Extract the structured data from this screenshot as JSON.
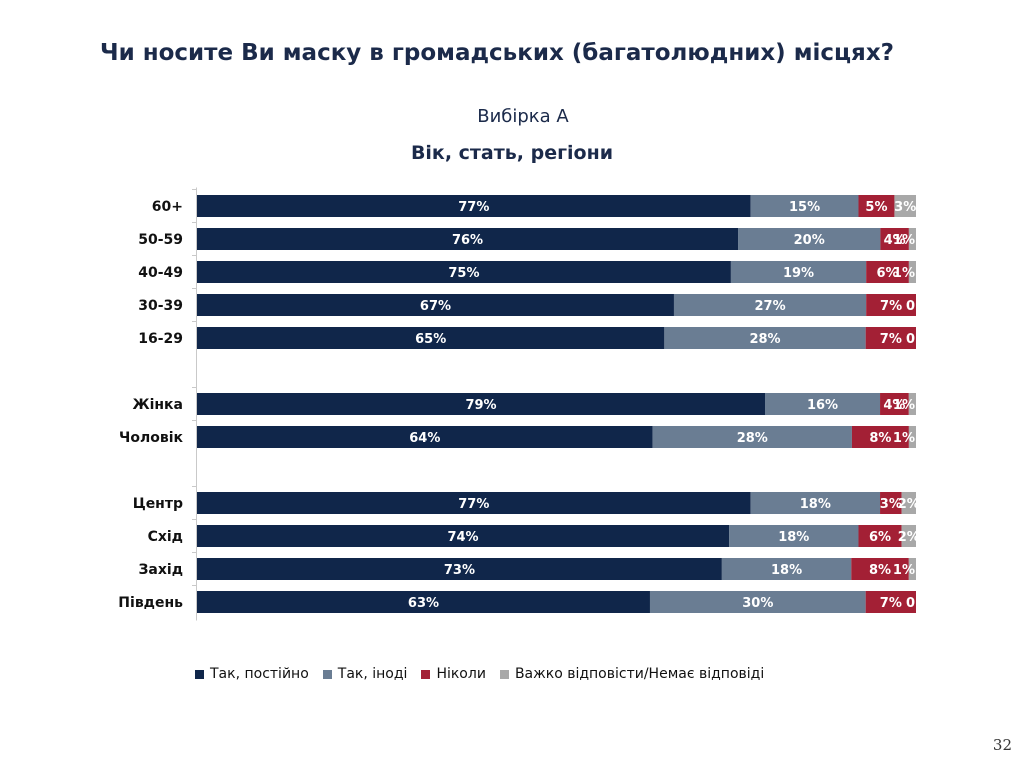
{
  "title": "Чи носите Ви маску в громадських (багатолюдних) місцях?",
  "subtitle": "Вибірка А",
  "subtitle2": "Вік, стать, регіони",
  "page_number": "32",
  "colors": {
    "always": "#10264a",
    "sometimes": "#6a7d93",
    "never": "#a32035",
    "hard_to_say": "#a8a8a8"
  },
  "chart_data": {
    "type": "bar",
    "orientation": "horizontal",
    "stacked": true,
    "xlim": [
      0,
      100
    ],
    "groups": [
      [
        "60+",
        "50-59",
        "40-49",
        "30-39",
        "16-29"
      ],
      [
        "Жінка",
        "Чоловік"
      ],
      [
        "Центр",
        "Схід",
        "Захід",
        "Південь"
      ]
    ],
    "categories": [
      "60+",
      "50-59",
      "40-49",
      "30-39",
      "16-29",
      "Жінка",
      "Чоловік",
      "Центр",
      "Схід",
      "Захід",
      "Південь"
    ],
    "series": [
      {
        "name": "Так, постійно",
        "color": "#10264a",
        "values": [
          77,
          76,
          75,
          67,
          65,
          79,
          64,
          77,
          74,
          73,
          63
        ],
        "labels": [
          "77%",
          "76%",
          "75%",
          "67%",
          "65%",
          "79%",
          "64%",
          "77%",
          "74%",
          "73%",
          "63%"
        ]
      },
      {
        "name": "Так, іноді",
        "color": "#6a7d93",
        "values": [
          15,
          20,
          19,
          27,
          28,
          16,
          28,
          18,
          18,
          18,
          30
        ],
        "labels": [
          "15%",
          "20%",
          "19%",
          "27%",
          "28%",
          "16%",
          "28%",
          "18%",
          "18%",
          "18%",
          "30%"
        ]
      },
      {
        "name": "Ніколи",
        "color": "#a32035",
        "values": [
          5,
          4,
          6,
          7,
          7,
          4,
          8,
          3,
          6,
          8,
          7
        ],
        "labels": [
          "5%",
          "4%",
          "6%",
          "7%",
          "7%",
          "4%",
          "8%",
          "3%",
          "6%",
          "8%",
          "7%"
        ]
      },
      {
        "name": "Важко відповісти/Немає відповіді",
        "color": "#a8a8a8",
        "values": [
          3,
          1,
          1,
          0,
          0,
          1,
          1,
          2,
          2,
          1,
          0
        ],
        "labels": [
          "3%",
          "1%",
          "1%",
          "0",
          "0",
          "1%",
          "1%",
          "2%",
          "2%",
          "1%",
          "0"
        ]
      }
    ],
    "legend_position": "bottom",
    "grid": false
  }
}
